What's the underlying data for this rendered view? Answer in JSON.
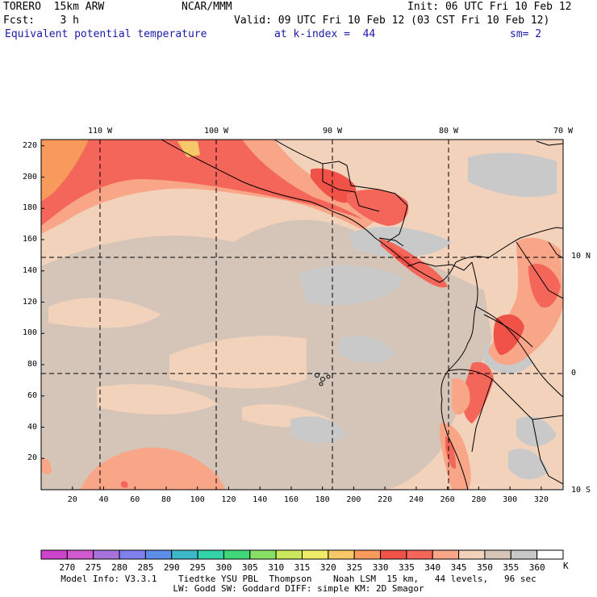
{
  "header": {
    "model": "TORERO  15km ARW",
    "org": "NCAR/MMM",
    "init": "Init: 06 UTC Fri 10 Feb 12",
    "fcst": "Fcst:    3 h",
    "valid": "Valid: 09 UTC Fri 10 Feb 12 (03 CST Fri 10 Feb 12)",
    "field": "Equivalent potential temperature",
    "level": "at k-index =  44",
    "smooth": "sm= 2"
  },
  "map": {
    "top_lon_labels": [
      "110 W",
      "100 W",
      "90 W",
      "80 W",
      "70 W"
    ],
    "right_lat_labels": [
      "10 N",
      "0",
      "10 S"
    ],
    "y_ticks": [
      "220",
      "200",
      "180",
      "160",
      "140",
      "120",
      "100",
      "80",
      "60",
      "40",
      "20"
    ],
    "x_ticks": [
      "20",
      "40",
      "60",
      "80",
      "100",
      "120",
      "140",
      "160",
      "180",
      "200",
      "220",
      "240",
      "260",
      "280",
      "300",
      "320"
    ]
  },
  "colorbar": {
    "unit": "K",
    "labels": [
      "270",
      "275",
      "280",
      "285",
      "290",
      "295",
      "300",
      "305",
      "310",
      "315",
      "320",
      "325",
      "330",
      "335",
      "340",
      "345",
      "350",
      "355",
      "360"
    ],
    "colors": [
      "#d15ad1",
      "#a873dd",
      "#7f7fee",
      "#5c8de9",
      "#3cb8c8",
      "#33d2a8",
      "#3ed77a",
      "#86e065",
      "#c9e85c",
      "#f0ec6a",
      "#f7c867",
      "#f79a5c",
      "#f05248",
      "#f46659",
      "#f9a588",
      "#f2d2bb",
      "#d5c5b8",
      "#c9c9c9",
      "#ffffff"
    ]
  },
  "footer": {
    "line1": "Model Info: V3.3.1    Tiedtke YSU PBL  Thompson    Noah LSM  15 km,   44 levels,   96 sec",
    "line2": "LW: Godd SW: Goddard DIFF: simple KM: 2D Smagor"
  }
}
